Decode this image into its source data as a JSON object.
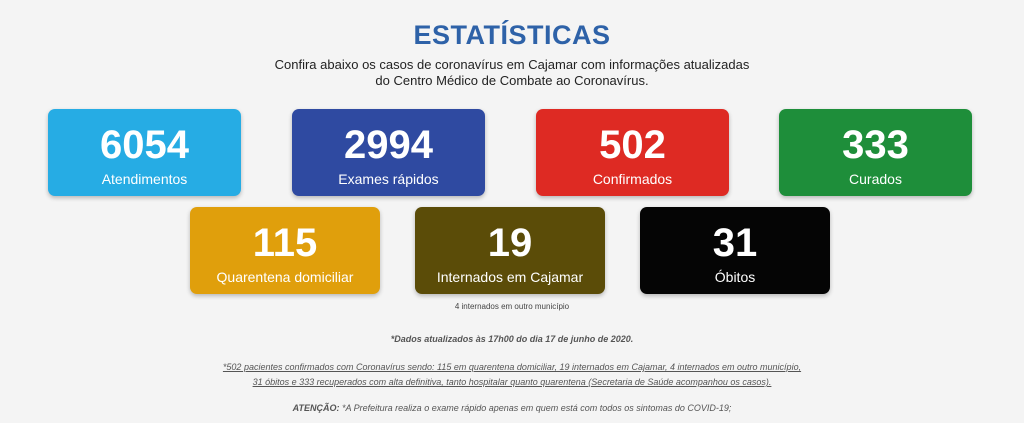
{
  "header": {
    "title": "ESTATÍSTICAS",
    "subtitle_line1": "Confira abaixo os casos de coronavírus em Cajamar com informações atualizadas",
    "subtitle_line2": "do Centro Médico de Combate ao Coronavírus."
  },
  "stats": [
    {
      "value": "6054",
      "label": "Atendimentos",
      "color": "#26ace4"
    },
    {
      "value": "2994",
      "label": "Exames rápidos",
      "color": "#2f4aa1"
    },
    {
      "value": "502",
      "label": "Confirmados",
      "color": "#de2a23"
    },
    {
      "value": "333",
      "label": "Curados",
      "color": "#1e8e3a"
    },
    {
      "value": "115",
      "label": "Quarentena domiciliar",
      "color": "#e09f0c"
    },
    {
      "value": "19",
      "label": "Internados em Cajamar",
      "color": "#5b4c08"
    },
    {
      "value": "31",
      "label": "Óbitos",
      "color": "#050505"
    }
  ],
  "notes": {
    "other_city": "4 internados em outro município",
    "updated": "*Dados atualizados às 17h00 do dia 17 de junho de 2020.",
    "footnote_line1": "*502 pacientes confirmados com Coronavírus sendo: 115 em quarentena domiciliar, 19 internados em Cajamar, 4 internados em outro município,",
    "footnote_line2": "31 óbitos e 333 recuperados com alta definitiva, tanto hospitalar quanto quarentena (Secretaria de Saúde acompanhou os casos).",
    "attention_label": "ATENÇÃO:",
    "attention_text": "*A Prefeitura realiza o exame rápido apenas em quem está com todos os sintomas do COVID-19;"
  }
}
